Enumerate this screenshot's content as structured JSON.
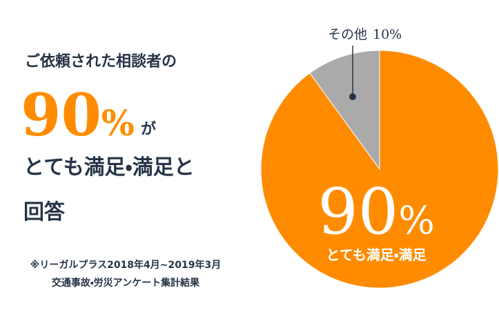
{
  "headline": {
    "lead": "ご依頼された相談者の",
    "figure": "90%",
    "particle": "が",
    "line3": "とても満足・満足と",
    "line4": "回答"
  },
  "footnote": [
    "※リーガルプラス2018年4月~2019年3月",
    "交通事故・労災アンケート集計結果"
  ],
  "chart_data": {
    "type": "pie",
    "categories": [
      "とても満足・満足",
      "その他"
    ],
    "values": [
      90,
      10
    ],
    "value_labels": [
      "90%",
      "10%"
    ],
    "colors": [
      "#ff8c00",
      "#aaaaaa"
    ]
  }
}
